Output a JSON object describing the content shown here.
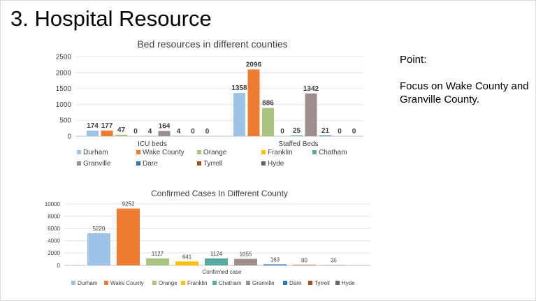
{
  "slide": {
    "title": "3. Hospital Resource",
    "note_heading": "Point:",
    "note_body": "Focus on Wake County and Granville County."
  },
  "chart_data": [
    {
      "type": "bar",
      "title": "Bed resources in different counties",
      "categories": [
        "ICU beds",
        "Staffed Beds"
      ],
      "series": [
        {
          "name": "Durham",
          "color": "#9dc3e6",
          "values": [
            174,
            1358
          ]
        },
        {
          "name": "Wake County",
          "color": "#ed7d31",
          "values": [
            177,
            2096
          ]
        },
        {
          "name": "Orange",
          "color": "#a9c47f",
          "values": [
            47,
            886
          ]
        },
        {
          "name": "Franklin",
          "color": "#ffc000",
          "values": [
            0,
            0
          ]
        },
        {
          "name": "Chatham",
          "color": "#5aaaa0",
          "values": [
            4,
            25
          ]
        },
        {
          "name": "Granville",
          "color": "#9e8e8e",
          "values": [
            164,
            1342
          ]
        },
        {
          "name": "Dare",
          "color": "#2e75b6",
          "values": [
            4,
            21
          ]
        },
        {
          "name": "Tyrrell",
          "color": "#a84f1c",
          "values": [
            0,
            0
          ]
        },
        {
          "name": "Hyde",
          "color": "#6d6259",
          "values": [
            0,
            0
          ]
        }
      ],
      "yticks": [
        0,
        500,
        1000,
        1500,
        2000,
        2500
      ],
      "ylim": [
        0,
        2500
      ],
      "grid": true,
      "legend": "bottom"
    },
    {
      "type": "bar",
      "title": "Confirmed Cases In Different County",
      "categories": [
        "Confirmed case"
      ],
      "series": [
        {
          "name": "Durham",
          "color": "#9dc3e6",
          "values": [
            5220
          ]
        },
        {
          "name": "Wake County",
          "color": "#ed7d31",
          "values": [
            9252
          ]
        },
        {
          "name": "Orange",
          "color": "#a9c47f",
          "values": [
            1127
          ]
        },
        {
          "name": "Franklin",
          "color": "#ffc000",
          "values": [
            641
          ]
        },
        {
          "name": "Chatham",
          "color": "#5aaaa0",
          "values": [
            1124
          ]
        },
        {
          "name": "Granville",
          "color": "#9e8e8e",
          "values": [
            1055
          ]
        },
        {
          "name": "Dare",
          "color": "#2e75b6",
          "values": [
            163
          ]
        },
        {
          "name": "Tyrrell",
          "color": "#a84f1c",
          "values": [
            80
          ]
        },
        {
          "name": "Hyde",
          "color": "#6d6259",
          "values": [
            35
          ]
        }
      ],
      "yticks": [
        0,
        2000,
        4000,
        6000,
        8000,
        10000
      ],
      "ylim": [
        0,
        10000
      ],
      "grid": true,
      "legend": "bottom"
    }
  ]
}
